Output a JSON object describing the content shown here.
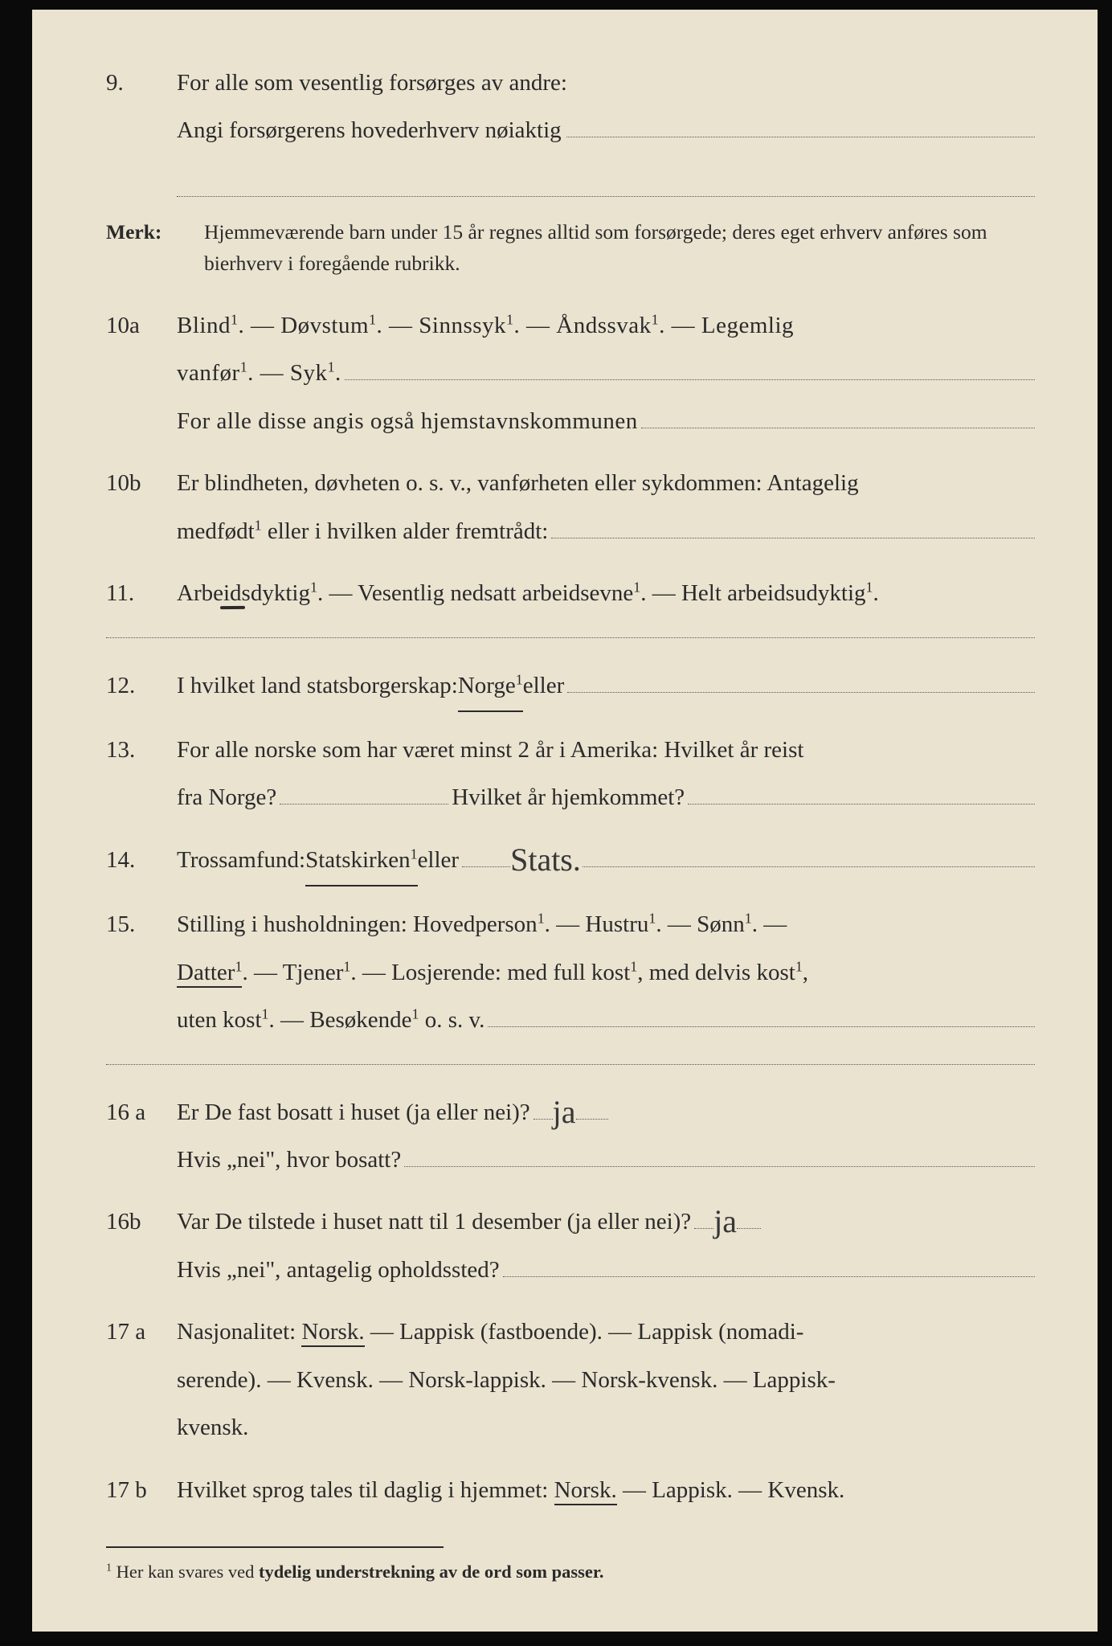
{
  "colors": {
    "paper": "#eae3d0",
    "ink": "#2a2a2a",
    "dotted": "#555555",
    "frame": "#0a0a0a"
  },
  "typography": {
    "body_pt": 29,
    "merk_pt": 25.5,
    "footnote_pt": 22.5,
    "font": "serif"
  },
  "q9": {
    "num": "9.",
    "line1": "For alle som vesentlig forsørges av andre:",
    "line2_pre": "Angi forsørgerens hovederhverv nøiaktig"
  },
  "merk": {
    "label": "Merk:",
    "text": "Hjemmeværende barn under 15 år regnes alltid som forsørgede; deres eget erhverv anføres som bierhverv i foregående rubrikk."
  },
  "q10a": {
    "num": "10a",
    "options_line": "Blind¹.  —  Døvstum¹.  —  Sinnssyk¹.  —  Åndssvak¹.  —  Legemlig",
    "cont": "vanfør¹. — Syk¹.",
    "hjemstavn": "For alle disse angis også hjemstavnskommunen"
  },
  "q10b": {
    "num": "10b",
    "line1": "Er blindheten, døvheten o. s. v., vanførheten eller sykdommen: Antagelig",
    "line2_pre": "medfødt¹ eller i hvilken alder fremtrådt:"
  },
  "q11": {
    "num": "11.",
    "pre": "Arbe",
    "under": "id",
    "post": "sdyktig¹. — Vesentlig nedsatt arbeidsevne¹. — Helt arbeidsudyktig¹."
  },
  "q12": {
    "num": "12.",
    "pre": "I hvilket land statsborgerskap: ",
    "opt": "Norge¹",
    "after": " eller"
  },
  "q13": {
    "num": "13.",
    "line1": "For alle norske som har været minst 2 år i Amerika:  Hvilket år reist",
    "line2a": "fra Norge?",
    "line2b": " Hvilket år hjemkommet?"
  },
  "q14": {
    "num": "14.",
    "pre": "Trossamfund:  ",
    "opt": "Statskirken¹",
    "after": " eller",
    "handwritten": "Stats."
  },
  "q15": {
    "num": "15.",
    "line1_pre": "Stilling i husholdningen:  Hovedperson¹.  —  Hustru¹.  —  Sønn¹.  —",
    "line2_opt": "Datter¹",
    "line2_post": ". — Tjener¹. — Losjerende: med full kost¹, med delvis kost¹,",
    "line3": "uten kost¹. — Besøkende¹ o. s. v."
  },
  "q16a": {
    "num": "16 a",
    "q": "Er De fast bosatt i huset (ja eller nei)?",
    "ans": "ja",
    "hvis": "Hvis „nei\", hvor bosatt?"
  },
  "q16b": {
    "num": "16b",
    "q": "Var De tilstede i huset natt til 1 desember (ja eller nei)?",
    "ans": "ja",
    "hvis": "Hvis „nei\", antagelig opholdssted?"
  },
  "q17a": {
    "num": "17 a",
    "pre": "Nasjonalitet: ",
    "opt": "Norsk.",
    "rest1": "  —  Lappisk (fastboende).  —  Lappisk (nomadi-",
    "rest2": "serende). — Kvensk. — Norsk-lappisk. — Norsk-kvensk. — Lappisk-",
    "rest3": "kvensk."
  },
  "q17b": {
    "num": "17 b",
    "pre": "Hvilket sprog tales til daglig i hjemmet: ",
    "opt": "Norsk.",
    "rest": " — Lappisk. — Kvensk."
  },
  "footnote": {
    "marker": "¹",
    "pre": "  Her kan svares ved ",
    "bold": "tydelig understrekning av de ord som passer."
  }
}
